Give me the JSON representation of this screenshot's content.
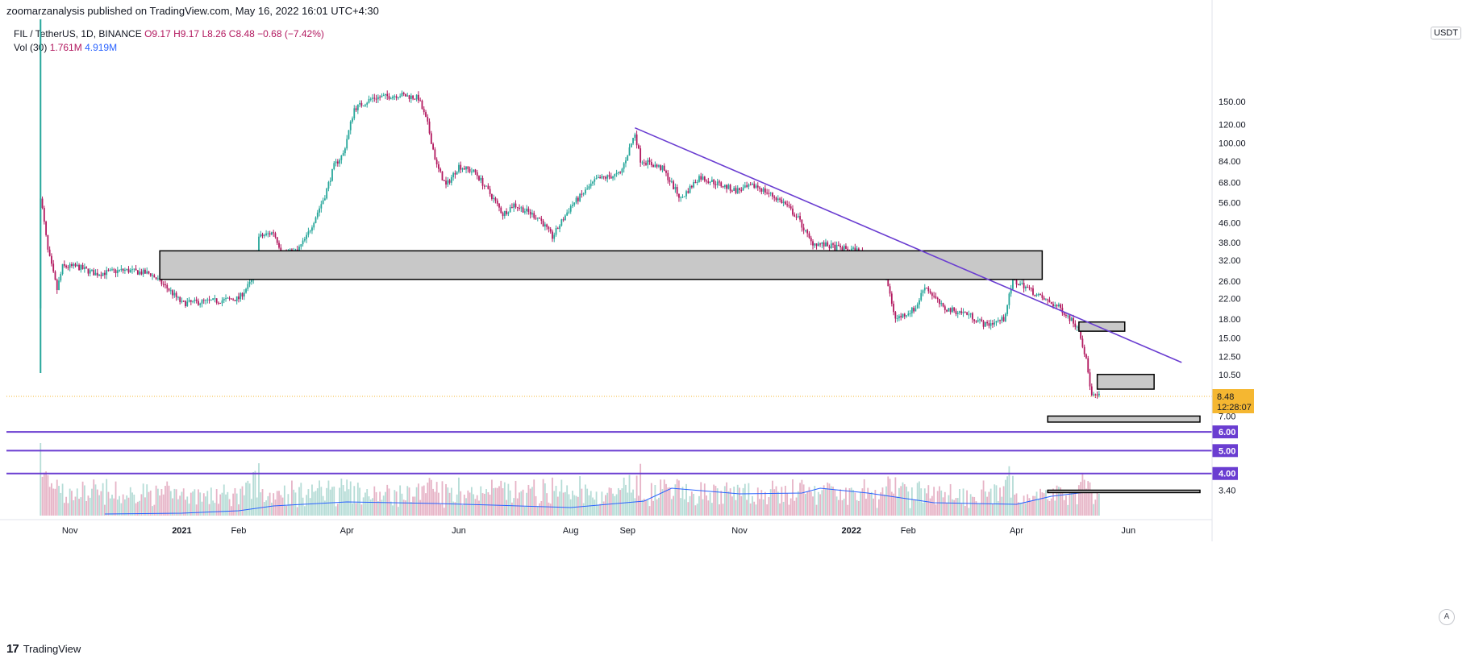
{
  "published": "zoomarzanalysis published on TradingView.com, May 16, 2022 16:01 UTC+4:30",
  "symbol": "FIL / TetherUS, 1D, BINANCE",
  "ohlc": "O9.17  H9.17  L8.26  C8.48  −0.68 (−7.42%)",
  "vol_label": "Vol (30)",
  "vol_value": "1.761M",
  "vol_ma": "4.919M",
  "currency": "USDT",
  "footer_brand": "TradingView",
  "auto_label": "A",
  "colors": {
    "up": "#26a69a",
    "down": "#b2185f",
    "trend": "#6a3dd1",
    "zone": "#c8c8c8",
    "vol_ma_line": "#2962ff",
    "price_tag": "#f5b731"
  },
  "chart_data": {
    "type": "candlestick",
    "title": "FIL / TetherUS, 1D, BINANCE",
    "scale": "log",
    "y_ticks": [
      3.4,
      4.0,
      5.0,
      6.0,
      7.0,
      8.48,
      10.5,
      12.5,
      15.0,
      18.0,
      22.0,
      26.0,
      32.0,
      38.0,
      46.0,
      56.0,
      68.0,
      84.0,
      100.0,
      120.0,
      150.0
    ],
    "y_tick_labels": [
      "3.40",
      "4.00",
      "5.00",
      "6.00",
      "7.00",
      "8.48",
      "10.50",
      "12.50",
      "15.00",
      "18.00",
      "22.00",
      "26.00",
      "32.00",
      "38.00",
      "46.00",
      "56.00",
      "68.00",
      "84.00",
      "100.00",
      "120.00",
      "150.00"
    ],
    "x_labels": [
      "Nov",
      "2021",
      "Feb",
      "Apr",
      "Jun",
      "Aug",
      "Sep",
      "Nov",
      "2022",
      "Feb",
      "Apr",
      "Jun"
    ],
    "x_label_dates": [
      "2020-11-01",
      "2021-01-01",
      "2021-02-01",
      "2021-04-01",
      "2021-06-01",
      "2021-08-01",
      "2021-09-01",
      "2021-11-01",
      "2022-01-01",
      "2022-02-01",
      "2022-04-01",
      "2022-06-01"
    ],
    "last_price": "8.48",
    "countdown": "12:28:07",
    "price_path": [
      [
        "2020-10-15",
        20.0
      ],
      [
        "2020-10-16",
        60.0
      ],
      [
        "2020-10-20",
        35.0
      ],
      [
        "2020-10-25",
        24.0
      ],
      [
        "2020-10-28",
        30.0
      ],
      [
        "2020-11-05",
        30.0
      ],
      [
        "2020-11-15",
        28.0
      ],
      [
        "2020-12-01",
        29.0
      ],
      [
        "2020-12-15",
        28.0
      ],
      [
        "2020-12-25",
        24.0
      ],
      [
        "2021-01-01",
        21.0
      ],
      [
        "2021-01-20",
        21.5
      ],
      [
        "2021-02-01",
        22.0
      ],
      [
        "2021-02-08",
        26.0
      ],
      [
        "2021-02-12",
        40.0
      ],
      [
        "2021-02-20",
        42.0
      ],
      [
        "2021-02-25",
        34.0
      ],
      [
        "2021-03-05",
        35.0
      ],
      [
        "2021-03-10",
        40.0
      ],
      [
        "2021-03-20",
        60.0
      ],
      [
        "2021-03-25",
        80.0
      ],
      [
        "2021-03-30",
        90.0
      ],
      [
        "2021-04-05",
        140.0
      ],
      [
        "2021-04-15",
        155.0
      ],
      [
        "2021-04-30",
        160.0
      ],
      [
        "2021-05-10",
        155.0
      ],
      [
        "2021-05-15",
        120.0
      ],
      [
        "2021-05-20",
        80.0
      ],
      [
        "2021-05-25",
        66.0
      ],
      [
        "2021-06-01",
        80.0
      ],
      [
        "2021-06-10",
        75.0
      ],
      [
        "2021-06-20",
        58.0
      ],
      [
        "2021-06-25",
        50.0
      ],
      [
        "2021-07-01",
        55.0
      ],
      [
        "2021-07-15",
        48.0
      ],
      [
        "2021-07-22",
        40.0
      ],
      [
        "2021-08-01",
        54.0
      ],
      [
        "2021-08-15",
        70.0
      ],
      [
        "2021-08-28",
        74.0
      ],
      [
        "2021-09-05",
        110.0
      ],
      [
        "2021-09-08",
        85.0
      ],
      [
        "2021-09-20",
        78.0
      ],
      [
        "2021-09-30",
        58.0
      ],
      [
        "2021-10-10",
        72.0
      ],
      [
        "2021-10-30",
        63.0
      ],
      [
        "2021-11-10",
        66.0
      ],
      [
        "2021-11-25",
        56.0
      ],
      [
        "2021-12-03",
        48.0
      ],
      [
        "2021-12-10",
        38.0
      ],
      [
        "2021-12-25",
        36.0
      ],
      [
        "2022-01-05",
        35.0
      ],
      [
        "2022-01-12",
        30.0
      ],
      [
        "2022-01-20",
        27.0
      ],
      [
        "2022-01-25",
        18.0
      ],
      [
        "2022-02-05",
        20.0
      ],
      [
        "2022-02-10",
        25.0
      ],
      [
        "2022-02-20",
        20.0
      ],
      [
        "2022-03-05",
        19.0
      ],
      [
        "2022-03-15",
        17.0
      ],
      [
        "2022-03-25",
        18.0
      ],
      [
        "2022-03-30",
        26.0
      ],
      [
        "2022-04-05",
        25.0
      ],
      [
        "2022-04-15",
        22.0
      ],
      [
        "2022-04-25",
        20.0
      ],
      [
        "2022-05-05",
        16.5
      ],
      [
        "2022-05-09",
        12.0
      ],
      [
        "2022-05-12",
        8.5
      ],
      [
        "2022-05-16",
        8.48
      ]
    ],
    "volume_ma": "4.919M",
    "last_volume": "1.761M",
    "annotations": {
      "trendline": [
        [
          "2021-09-05",
          116.0
        ],
        [
          "2022-06-30",
          11.8
        ]
      ],
      "zones": [
        {
          "from": "2020-12-20",
          "to": "2022-04-15",
          "low": 26.5,
          "high": 35.0
        },
        {
          "from": "2022-05-05",
          "to": "2022-05-30",
          "low": 16.0,
          "high": 17.5
        },
        {
          "from": "2022-05-15",
          "to": "2022-06-15",
          "low": 9.1,
          "high": 10.5
        },
        {
          "from": "2022-04-18",
          "to": "2022-07-10",
          "low": 6.6,
          "high": 7.0
        },
        {
          "from": "2022-04-18",
          "to": "2022-07-10",
          "low": 3.35,
          "high": 3.4
        }
      ],
      "levels": [
        {
          "value": 6.0,
          "label": "6.00"
        },
        {
          "value": 5.0,
          "label": "5.00"
        },
        {
          "value": 4.0,
          "label": "4.00"
        }
      ]
    }
  }
}
